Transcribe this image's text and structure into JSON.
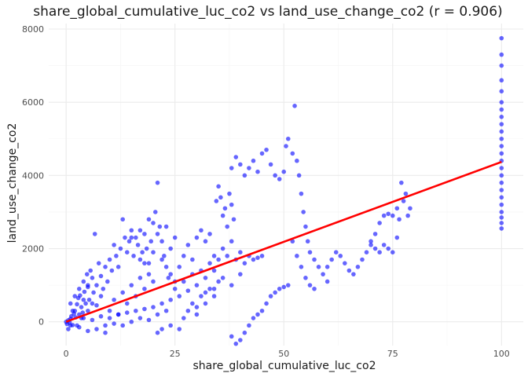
{
  "chart_data": {
    "type": "scatter",
    "title": "share_global_cumulative_luc_co2 vs land_use_change_co2 (r = 0.906)",
    "xlabel": "share_global_cumulative_luc_co2",
    "ylabel": "land_use_change_co2",
    "xlim": [
      -4,
      105
    ],
    "ylim": [
      -650,
      8150
    ],
    "x_ticks": [
      0,
      25,
      50,
      75,
      100
    ],
    "x_tick_labels": [
      "0",
      "25",
      "50",
      "75",
      "100"
    ],
    "y_ticks": [
      0,
      2000,
      4000,
      6000,
      8000
    ],
    "y_tick_labels": [
      "0",
      "2000",
      "4000",
      "6000",
      "8000"
    ],
    "grid": true,
    "point_color": "#0000ff",
    "fit_color": "#ff0000",
    "fit_line": {
      "x": [
        0,
        100
      ],
      "y": [
        0,
        4370
      ]
    },
    "series": [
      {
        "values_note": "",
        "points": [
          [
            0,
            0
          ],
          [
            0.2,
            -60
          ],
          [
            0.5,
            40
          ],
          [
            0.8,
            -20
          ],
          [
            1,
            80
          ],
          [
            1.2,
            150
          ],
          [
            1.5,
            -90
          ],
          [
            1.8,
            220
          ],
          [
            2,
            300
          ],
          [
            2.2,
            120
          ],
          [
            2.5,
            480
          ],
          [
            2.8,
            650
          ],
          [
            3,
            900
          ],
          [
            3.2,
            720
          ],
          [
            3.5,
            400
          ],
          [
            3.8,
            250
          ],
          [
            4,
            1100
          ],
          [
            4.2,
            820
          ],
          [
            4.5,
            500
          ],
          [
            4.8,
            1300
          ],
          [
            5,
            950
          ],
          [
            5.3,
            600
          ],
          [
            5.6,
            1400
          ],
          [
            6,
            1200
          ],
          [
            6.3,
            800
          ],
          [
            6.6,
            2400
          ],
          [
            7,
            1000
          ],
          [
            7.5,
            1600
          ],
          [
            8,
            1250
          ],
          [
            8.5,
            900
          ],
          [
            9,
            1500
          ],
          [
            9.5,
            1100
          ],
          [
            10,
            1700
          ],
          [
            10.5,
            1400
          ],
          [
            11,
            2100
          ],
          [
            11.5,
            1800
          ],
          [
            12,
            1500
          ],
          [
            12.5,
            2000
          ],
          [
            13,
            2800
          ],
          [
            13.5,
            2300
          ],
          [
            14,
            1900
          ],
          [
            14.5,
            2200
          ],
          [
            15,
            2500
          ],
          [
            15.5,
            1800
          ],
          [
            16,
            2300
          ],
          [
            16.5,
            2100
          ],
          [
            17,
            1700
          ],
          [
            17.5,
            1900
          ],
          [
            18,
            2400
          ],
          [
            18.5,
            2000
          ],
          [
            19,
            1600
          ],
          [
            19.5,
            2200
          ],
          [
            20,
            2700
          ],
          [
            20.5,
            3000
          ],
          [
            21,
            3800
          ],
          [
            21.5,
            2600
          ],
          [
            22,
            2200
          ],
          [
            22.5,
            1800
          ],
          [
            23,
            1500
          ],
          [
            23.5,
            1200
          ],
          [
            5,
            300
          ],
          [
            6,
            500
          ],
          [
            7,
            450
          ],
          [
            8,
            700
          ],
          [
            9,
            -100
          ],
          [
            10,
            300
          ],
          [
            11,
            600
          ],
          [
            12,
            200
          ],
          [
            13,
            800
          ],
          [
            14,
            500
          ],
          [
            15,
            1000
          ],
          [
            16,
            700
          ],
          [
            17,
            1200
          ],
          [
            18,
            900
          ],
          [
            19,
            1300
          ],
          [
            20,
            1100
          ],
          [
            21,
            200
          ],
          [
            22,
            -200
          ],
          [
            23,
            300
          ],
          [
            24,
            -100
          ],
          [
            3,
            -150
          ],
          [
            4,
            100
          ],
          [
            5,
            -250
          ],
          [
            6,
            50
          ],
          [
            7,
            -200
          ],
          [
            8,
            150
          ],
          [
            9,
            -300
          ],
          [
            10,
            100
          ],
          [
            11,
            -50
          ],
          [
            12,
            200
          ],
          [
            13,
            -100
          ],
          [
            14,
            250
          ],
          [
            15,
            0
          ],
          [
            16,
            300
          ],
          [
            17,
            100
          ],
          [
            18,
            350
          ],
          [
            19,
            50
          ],
          [
            20,
            400
          ],
          [
            21,
            -300
          ],
          [
            22,
            500
          ],
          [
            24,
            1300
          ],
          [
            25,
            1100
          ],
          [
            26,
            1500
          ],
          [
            27,
            1800
          ],
          [
            28,
            2100
          ],
          [
            29,
            1700
          ],
          [
            30,
            2300
          ],
          [
            31,
            2500
          ],
          [
            32,
            2200
          ],
          [
            33,
            2400
          ],
          [
            24,
            600
          ],
          [
            25,
            900
          ],
          [
            26,
            700
          ],
          [
            27,
            1100
          ],
          [
            28,
            850
          ],
          [
            29,
            1300
          ],
          [
            30,
            1000
          ],
          [
            31,
            1400
          ],
          [
            32,
            1200
          ],
          [
            33,
            1600
          ],
          [
            34,
            1800
          ],
          [
            34.5,
            3300
          ],
          [
            35,
            3700
          ],
          [
            35.5,
            3400
          ],
          [
            36,
            2900
          ],
          [
            36.5,
            3100
          ],
          [
            37,
            2600
          ],
          [
            37.5,
            3500
          ],
          [
            38,
            3200
          ],
          [
            38.5,
            2800
          ],
          [
            34,
            1400
          ],
          [
            35,
            1700
          ],
          [
            36,
            2000
          ],
          [
            37,
            1800
          ],
          [
            38,
            2200
          ],
          [
            39,
            1700
          ],
          [
            40,
            1900
          ],
          [
            41,
            1600
          ],
          [
            42,
            1800
          ],
          [
            43,
            1700
          ],
          [
            44,
            1750
          ],
          [
            45,
            1800
          ],
          [
            38,
            4200
          ],
          [
            39,
            4500
          ],
          [
            40,
            4300
          ],
          [
            41,
            4000
          ],
          [
            42,
            4200
          ],
          [
            43,
            4400
          ],
          [
            44,
            4100
          ],
          [
            45,
            4600
          ],
          [
            46,
            4700
          ],
          [
            47,
            4300
          ],
          [
            48,
            4000
          ],
          [
            49,
            3900
          ],
          [
            50,
            4100
          ],
          [
            50.5,
            4800
          ],
          [
            51,
            5000
          ],
          [
            52,
            4600
          ],
          [
            52.5,
            5900
          ],
          [
            53,
            4400
          ],
          [
            53.5,
            4000
          ],
          [
            54,
            3500
          ],
          [
            54.5,
            3000
          ],
          [
            55,
            2600
          ],
          [
            55.5,
            2200
          ],
          [
            56,
            1900
          ],
          [
            57,
            1700
          ],
          [
            58,
            1500
          ],
          [
            59,
            1300
          ],
          [
            60,
            1100
          ],
          [
            38,
            -400
          ],
          [
            39,
            -600
          ],
          [
            40,
            -500
          ],
          [
            41,
            -300
          ],
          [
            42,
            -100
          ],
          [
            43,
            100
          ],
          [
            44,
            200
          ],
          [
            45,
            300
          ],
          [
            46,
            500
          ],
          [
            47,
            700
          ],
          [
            48,
            800
          ],
          [
            49,
            900
          ],
          [
            50,
            950
          ],
          [
            51,
            1000
          ],
          [
            52,
            2200
          ],
          [
            53,
            1800
          ],
          [
            54,
            1500
          ],
          [
            55,
            1200
          ],
          [
            56,
            1000
          ],
          [
            57,
            900
          ],
          [
            60,
            1500
          ],
          [
            61,
            1700
          ],
          [
            62,
            1900
          ],
          [
            63,
            1800
          ],
          [
            64,
            1600
          ],
          [
            65,
            1400
          ],
          [
            66,
            1300
          ],
          [
            67,
            1500
          ],
          [
            68,
            1700
          ],
          [
            69,
            1900
          ],
          [
            70,
            2100
          ],
          [
            71,
            2400
          ],
          [
            72,
            2700
          ],
          [
            73,
            2900
          ],
          [
            74,
            2950
          ],
          [
            75,
            2900
          ],
          [
            76,
            3100
          ],
          [
            76.5,
            2800
          ],
          [
            77,
            3800
          ],
          [
            77.5,
            3300
          ],
          [
            78,
            3500
          ],
          [
            78.5,
            2900
          ],
          [
            79,
            3100
          ],
          [
            70,
            2200
          ],
          [
            71,
            2000
          ],
          [
            72,
            1900
          ],
          [
            73,
            2100
          ],
          [
            74,
            2000
          ],
          [
            75,
            1900
          ],
          [
            76,
            2300
          ],
          [
            100,
            2550
          ],
          [
            100,
            2700
          ],
          [
            100,
            2850
          ],
          [
            100,
            3000
          ],
          [
            100,
            3200
          ],
          [
            100,
            3400
          ],
          [
            100,
            3600
          ],
          [
            100,
            3800
          ],
          [
            100,
            4000
          ],
          [
            100,
            4200
          ],
          [
            100,
            4400
          ],
          [
            100,
            4600
          ],
          [
            100,
            4800
          ],
          [
            100,
            5000
          ],
          [
            100,
            5200
          ],
          [
            100,
            5400
          ],
          [
            100,
            5600
          ],
          [
            100,
            5800
          ],
          [
            100,
            6000
          ],
          [
            100,
            6300
          ],
          [
            100,
            6600
          ],
          [
            100,
            7000
          ],
          [
            100,
            7300
          ],
          [
            100,
            7750
          ],
          [
            30,
            400
          ],
          [
            32,
            800
          ],
          [
            34,
            900
          ],
          [
            36,
            1200
          ],
          [
            38,
            1000
          ],
          [
            40,
            1300
          ],
          [
            26,
            -200
          ],
          [
            27,
            100
          ],
          [
            28,
            300
          ],
          [
            29,
            500
          ],
          [
            30,
            200
          ],
          [
            31,
            700
          ],
          [
            32,
            500
          ],
          [
            33,
            900
          ],
          [
            34,
            700
          ],
          [
            35,
            1100
          ],
          [
            1,
            500
          ],
          [
            2,
            700
          ],
          [
            3,
            200
          ],
          [
            4,
            600
          ],
          [
            5,
            1000
          ],
          [
            1.5,
            300
          ],
          [
            2.5,
            -100
          ],
          [
            3.5,
            100
          ],
          [
            0.5,
            -200
          ],
          [
            1,
            -100
          ],
          [
            15,
            2300
          ],
          [
            17,
            2500
          ],
          [
            19,
            2800
          ],
          [
            21,
            2400
          ],
          [
            23,
            2600
          ],
          [
            18,
            1600
          ],
          [
            20,
            1900
          ],
          [
            22,
            1700
          ],
          [
            24,
            2000
          ],
          [
            25,
            2300
          ]
        ]
      }
    ]
  }
}
